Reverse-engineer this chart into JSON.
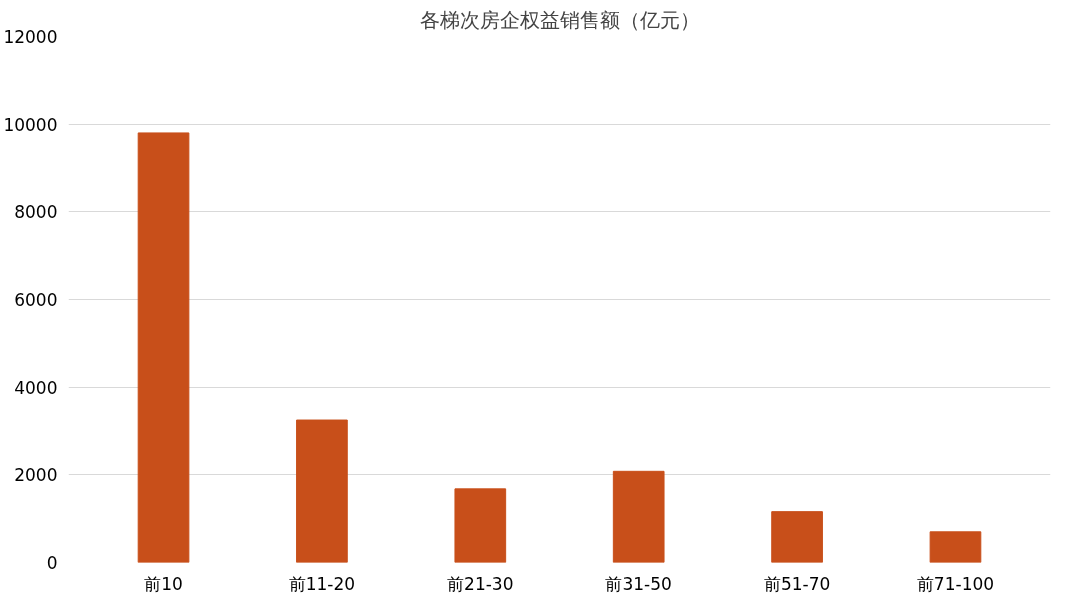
{
  "chart_data": {
    "type": "bar",
    "title": "各梯次房企权益销售额（亿元）",
    "categories": [
      "前10",
      "前11-20",
      "前21-30",
      "前31-50",
      "前51-70",
      "前71-100"
    ],
    "values": [
      9800,
      3250,
      1680,
      2080,
      1160,
      700
    ],
    "color": "#c84f1a",
    "ylim": [
      0,
      12000
    ],
    "yticks": [
      0,
      2000,
      4000,
      6000,
      8000,
      10000,
      12000
    ],
    "grid": "y"
  }
}
